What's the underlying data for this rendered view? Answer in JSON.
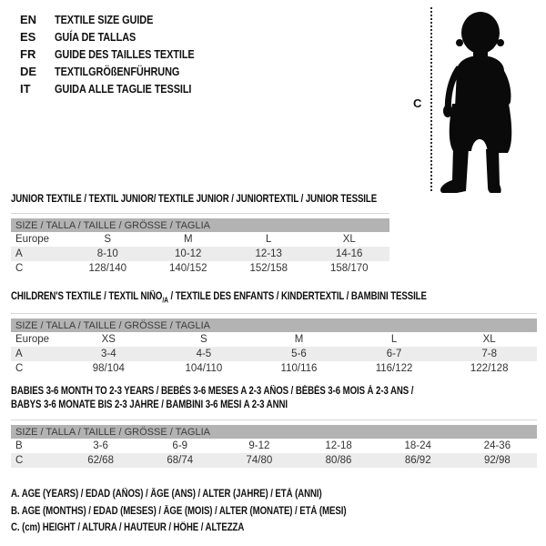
{
  "languages": {
    "items": [
      {
        "code": "EN",
        "title": "TEXTILE SIZE GUIDE"
      },
      {
        "code": "ES",
        "title": "GUÍA DE TALLAS"
      },
      {
        "code": "FR",
        "title": "GUIDE DES TAILLES TEXTILE"
      },
      {
        "code": "DE",
        "title": "TEXTILGRÖßENFÜHRUNG"
      },
      {
        "code": "IT",
        "title": "GUIDA ALLE TAGLIE TESSILI"
      }
    ]
  },
  "figure": {
    "silhouette_icon": "baby-toddler-silhouette",
    "measure_label": "C"
  },
  "colors": {
    "header_bar": "#b3b3b3",
    "row_alt": "#ececec",
    "rule": "#d6d6d6",
    "text": "#111111",
    "cell_text": "#333333"
  },
  "tables": [
    {
      "title": "JUNIOR TEXTILE / TEXTIL JUNIOR/ TEXTILE JUNIOR / JUNIORTEXTIL / JUNIOR TESSILE",
      "header": "SIZE / TALLA / TAILLE / GRÖSSE / TAGLIA",
      "rows": [
        [
          "Europe",
          "S",
          "M",
          "L",
          "XL"
        ],
        [
          "A",
          "8-10",
          "10-12",
          "12-13",
          "14-16"
        ],
        [
          "C",
          "128/140",
          "140/152",
          "152/158",
          "158/170"
        ]
      ]
    },
    {
      "title_pre": "CHILDREN'S TEXTILE / TEXTIL NIÑO",
      "title_sub": "/A",
      "title_post": " / TEXTILE DES ENFANTS / KINDERTEXTIL / BAMBINI TESSILE",
      "header": "SIZE / TALLA / TAILLE / GRÖSSE / TAGLIA",
      "rows": [
        [
          "Europe",
          "XS",
          "S",
          "M",
          "L",
          "XL"
        ],
        [
          "A",
          "3-4",
          "4-5",
          "5-6",
          "6-7",
          "7-8"
        ],
        [
          "C",
          "98/104",
          "104/110",
          "110/116",
          "116/122",
          "122/128"
        ]
      ]
    },
    {
      "title_line1": "BABIES 3-6 MONTH TO 2-3 YEARS / BEBÉS 3-6 MESES A 2-3 AÑOS / BÉBÉS 3-6 MOIS À 2-3 ANS /",
      "title_line2": "BABYS 3-6 MONATE BIS 2-3 JAHRE / BAMBINI 3-6 MESI A 2-3 ANNI",
      "header": "SIZE / TALLA / TAILLE / GRÖSSE / TAGLIA",
      "rows": [
        [
          "B",
          "3-6",
          "6-9",
          "9-12",
          "12-18",
          "18-24",
          "24-36"
        ],
        [
          "C",
          "62/68",
          "68/74",
          "74/80",
          "80/86",
          "86/92",
          "92/98"
        ]
      ]
    }
  ],
  "footnotes": [
    "A. AGE (YEARS) / EDAD (AÑOS) / ÂGE (ANS) / ALTER (JAHRE) / ETÀ (ANNI)",
    "B. AGE (MONTHS) / EDAD (MESES) / ÂGE (MOIS) / ALTER (MONATE) / ETÀ (MESI)",
    "C. (cm) HEIGHT / ALTURA / HAUTEUR / HÖHE / ALTEZZA"
  ]
}
